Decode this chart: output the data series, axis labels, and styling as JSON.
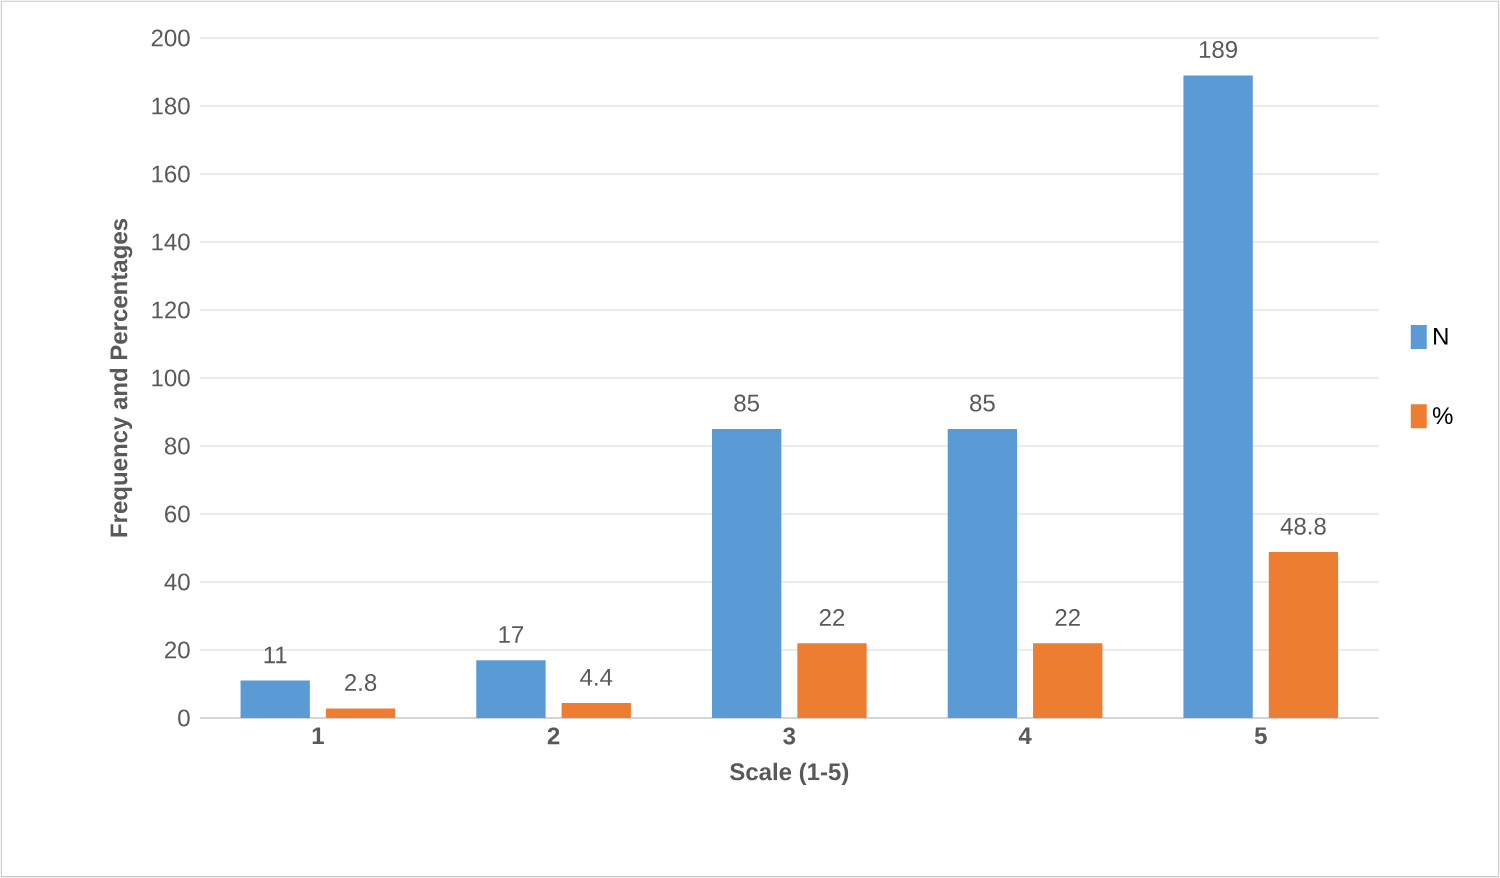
{
  "chart_data": {
    "type": "bar",
    "xlabel": "Scale (1-5)",
    "ylabel": "Frequency and Percentages",
    "categories": [
      "1",
      "2",
      "3",
      "4",
      "5"
    ],
    "series": [
      {
        "name": "N",
        "color": "#5b9bd5",
        "values": [
          11,
          17,
          85,
          85,
          189
        ]
      },
      {
        "name": "%",
        "color": "#ed7d31",
        "values": [
          2.8,
          4.4,
          22,
          22,
          48.8
        ]
      }
    ],
    "ylim": [
      0,
      200
    ],
    "yticks": [
      0,
      20,
      40,
      60,
      80,
      100,
      120,
      140,
      160,
      180,
      200
    ],
    "grid": "y",
    "legend": "right",
    "data_labels": true
  }
}
